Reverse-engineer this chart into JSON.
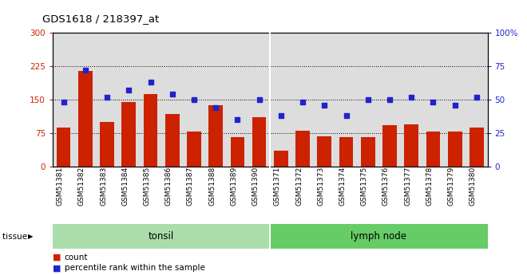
{
  "title": "GDS1618 / 218397_at",
  "categories": [
    "GSM51381",
    "GSM51382",
    "GSM51383",
    "GSM51384",
    "GSM51385",
    "GSM51386",
    "GSM51387",
    "GSM51388",
    "GSM51389",
    "GSM51390",
    "GSM51371",
    "GSM51372",
    "GSM51373",
    "GSM51374",
    "GSM51375",
    "GSM51376",
    "GSM51377",
    "GSM51378",
    "GSM51379",
    "GSM51380"
  ],
  "bar_values": [
    88,
    215,
    100,
    145,
    163,
    118,
    78,
    137,
    65,
    110,
    35,
    80,
    68,
    65,
    65,
    93,
    95,
    78,
    78,
    88
  ],
  "dot_values_pct": [
    48,
    72,
    52,
    57,
    63,
    54,
    50,
    44,
    35,
    50,
    38,
    48,
    46,
    38,
    50,
    50,
    52,
    48,
    46,
    52
  ],
  "tonsil_count": 10,
  "lymph_count": 10,
  "tonsil_label": "tonsil",
  "lymph_label": "lymph node",
  "tissue_label": "tissue",
  "legend_bar": "count",
  "legend_dot": "percentile rank within the sample",
  "bar_color": "#cc2200",
  "dot_color": "#2222cc",
  "tonsil_bg": "#aaddaa",
  "lymph_bg": "#66cc66",
  "plot_bg": "#dddddd",
  "fig_bg": "#ffffff",
  "ylim_left": [
    0,
    300
  ],
  "ylim_right": [
    0,
    100
  ],
  "yticks_left": [
    0,
    75,
    150,
    225,
    300
  ],
  "yticks_right": [
    0,
    25,
    50,
    75,
    100
  ],
  "ytick_labels_left": [
    "0",
    "75",
    "150",
    "225",
    "300"
  ],
  "ytick_labels_right": [
    "0",
    "25",
    "50",
    "75",
    "100%"
  ]
}
